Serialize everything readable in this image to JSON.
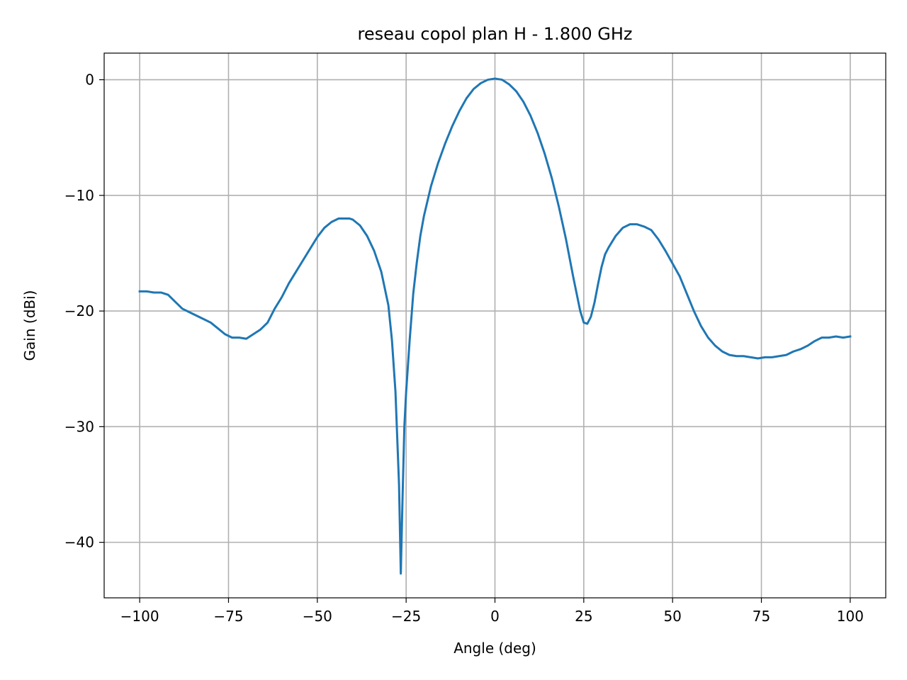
{
  "chart_data": {
    "type": "line",
    "title": "reseau copol plan H - 1.800 GHz",
    "xlabel": "Angle (deg)",
    "ylabel": "Gain (dBi)",
    "xlim": [
      -110,
      110
    ],
    "ylim": [
      -44.8,
      2.3
    ],
    "xticks": [
      -100,
      -75,
      -50,
      -25,
      0,
      25,
      50,
      75,
      100
    ],
    "xtick_labels": [
      "−100",
      "−75",
      "−50",
      "−25",
      "0",
      "25",
      "50",
      "75",
      "100"
    ],
    "yticks": [
      0,
      -10,
      -20,
      -30,
      -40
    ],
    "ytick_labels": [
      "0",
      "−10",
      "−20",
      "−30",
      "−40"
    ],
    "grid": true,
    "line_color": "#1f77b4",
    "series": [
      {
        "x": [
          -100,
          -98,
          -96,
          -94,
          -92,
          -90,
          -88,
          -86,
          -84,
          -82,
          -80,
          -78,
          -76,
          -74,
          -72,
          -70,
          -68,
          -66,
          -64,
          -62,
          -60,
          -58,
          -56,
          -54,
          -52,
          -50,
          -48,
          -46,
          -44,
          -42,
          -41,
          -40,
          -38,
          -36,
          -34,
          -32,
          -30,
          -29,
          -28,
          -27,
          -26.5,
          -26,
          -25.5,
          -25,
          -24,
          -23,
          -22,
          -21,
          -20,
          -18,
          -16,
          -14,
          -12,
          -10,
          -8,
          -6,
          -4,
          -2,
          0,
          2,
          4,
          6,
          8,
          10,
          12,
          14,
          16,
          18,
          20,
          22,
          24,
          25,
          26,
          27,
          28,
          29,
          30,
          31,
          32,
          34,
          36,
          38,
          40,
          42,
          44,
          46,
          48,
          50,
          52,
          54,
          56,
          58,
          60,
          62,
          64,
          66,
          68,
          70,
          72,
          74,
          76,
          78,
          80,
          82,
          84,
          86,
          88,
          90,
          92,
          94,
          96,
          98,
          100
        ],
        "y": [
          -18.3,
          -18.3,
          -18.4,
          -18.4,
          -18.6,
          -19.2,
          -19.8,
          -20.1,
          -20.4,
          -20.7,
          -21.0,
          -21.5,
          -22.0,
          -22.3,
          -22.3,
          -22.4,
          -22.0,
          -21.6,
          -21.0,
          -19.8,
          -18.8,
          -17.6,
          -16.6,
          -15.6,
          -14.6,
          -13.6,
          -12.8,
          -12.3,
          -12.0,
          -12.0,
          -12.0,
          -12.1,
          -12.6,
          -13.5,
          -14.8,
          -16.6,
          -19.5,
          -22.5,
          -27.0,
          -35.0,
          -42.7,
          -36.0,
          -30.0,
          -27.0,
          -22.5,
          -18.5,
          -15.8,
          -13.5,
          -11.8,
          -9.2,
          -7.2,
          -5.5,
          -4.0,
          -2.7,
          -1.6,
          -0.8,
          -0.3,
          0.0,
          0.1,
          0.0,
          -0.4,
          -1.0,
          -1.9,
          -3.1,
          -4.6,
          -6.4,
          -8.5,
          -11.0,
          -13.8,
          -17.0,
          -20.0,
          -21.0,
          -21.1,
          -20.5,
          -19.3,
          -17.7,
          -16.2,
          -15.1,
          -14.5,
          -13.5,
          -12.8,
          -12.5,
          -12.5,
          -12.7,
          -13.0,
          -13.8,
          -14.8,
          -15.9,
          -17.0,
          -18.5,
          -20.0,
          -21.3,
          -22.3,
          -23.0,
          -23.5,
          -23.8,
          -23.9,
          -23.9,
          -24.0,
          -24.1,
          -24.0,
          -24.0,
          -23.9,
          -23.8,
          -23.5,
          -23.3,
          -23.0,
          -22.6,
          -22.3,
          -22.3,
          -22.2,
          -22.3,
          -22.2
        ]
      }
    ]
  }
}
